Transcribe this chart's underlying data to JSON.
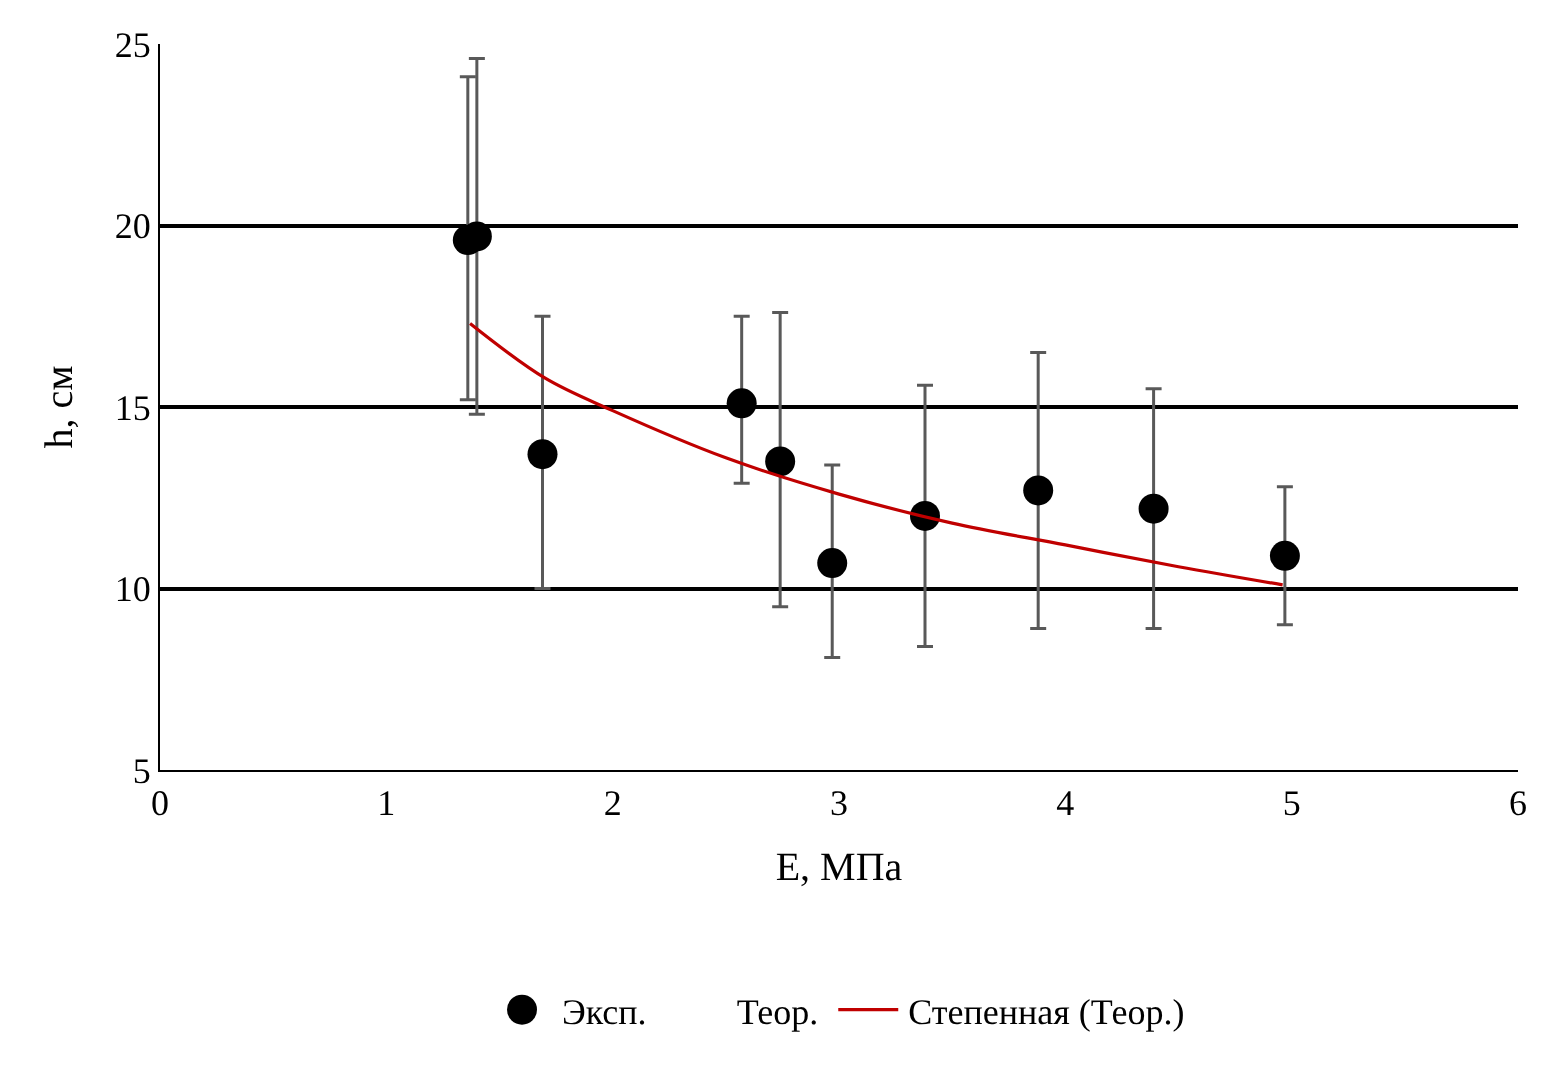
{
  "chart_data": {
    "type": "scatter",
    "xlabel": "E, МПа",
    "ylabel": "h, см",
    "xlim": [
      0,
      6
    ],
    "xticks": [
      0,
      1,
      2,
      3,
      4,
      5,
      6
    ],
    "ylim": [
      5,
      25
    ],
    "yticks": [
      5,
      10,
      15,
      20,
      25
    ],
    "grid": "y",
    "legend": "bottom",
    "series": [
      {
        "name": "Эксп.",
        "marker": "circle",
        "color": "#000000",
        "x": [
          1.36,
          1.4,
          1.69,
          2.57,
          2.74,
          2.97,
          3.38,
          3.88,
          4.39,
          4.97
        ],
        "values": [
          19.6,
          19.7,
          13.7,
          15.1,
          13.5,
          10.7,
          12.0,
          12.7,
          12.2,
          10.9
        ],
        "errors": [
          [
            15.2,
            24.1
          ],
          [
            14.8,
            24.6
          ],
          [
            10.0,
            17.5
          ],
          [
            12.9,
            17.5
          ],
          [
            9.5,
            17.6
          ],
          [
            8.1,
            13.4
          ],
          [
            8.4,
            15.6
          ],
          [
            8.9,
            16.5
          ],
          [
            8.9,
            15.5
          ],
          [
            9.0,
            12.8
          ]
        ]
      },
      {
        "name": "Теор.",
        "marker": "none"
      },
      {
        "name": "Степенная (Теор.)",
        "type": "line",
        "marker": "none",
        "line_style": "solid",
        "color": "#c00000",
        "x": [
          1.37,
          1.7,
          2,
          2.5,
          3,
          3.5,
          4,
          4.5,
          4.96
        ],
        "values": [
          17.3,
          15.8,
          14.9,
          13.6,
          12.6,
          11.8,
          11.2,
          10.6,
          10.1
        ]
      }
    ]
  }
}
